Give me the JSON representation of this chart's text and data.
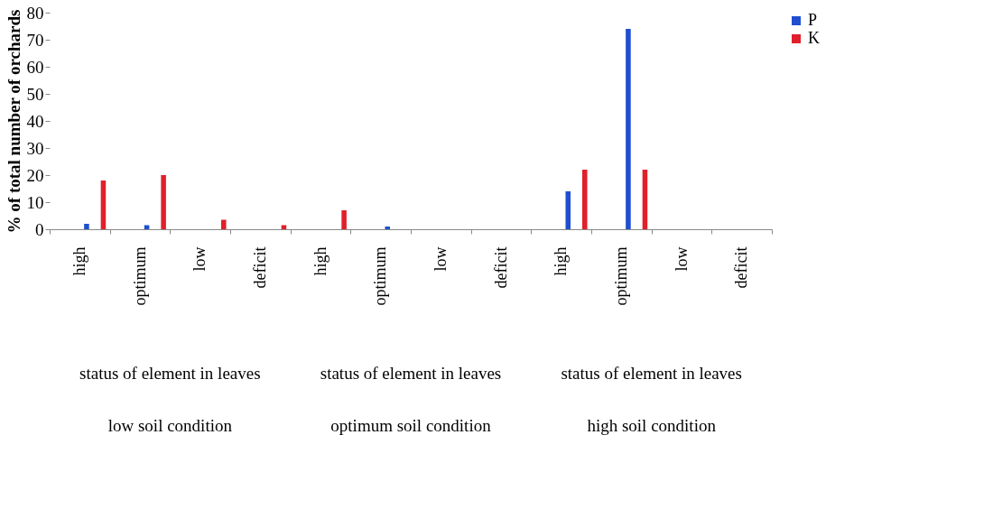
{
  "chart_data": {
    "type": "bar",
    "ylabel": "% of total number of orchards",
    "categories": [
      "high",
      "optimum",
      "low",
      "deficit",
      "high",
      "optimum",
      "low",
      "deficit",
      "high",
      "optimum",
      "low",
      "deficit"
    ],
    "series": [
      {
        "name": "P",
        "color": "#1f4fd0",
        "values": [
          2,
          1.5,
          0,
          0,
          0,
          1,
          0,
          0,
          14,
          74,
          0,
          0
        ]
      },
      {
        "name": "K",
        "color": "#e0202a",
        "values": [
          18,
          20,
          3.5,
          1.5,
          7,
          0,
          0,
          0,
          22,
          22,
          0,
          0
        ]
      }
    ],
    "ylim": [
      0,
      80
    ],
    "yticks": [
      0,
      10,
      20,
      30,
      40,
      50,
      60,
      70,
      80
    ],
    "grid": false,
    "legend": "right",
    "annotations": [
      "status of element in leaves",
      "status of element in leaves",
      "status of element in leaves",
      "low soil condition",
      "optimum soil condition",
      "high soil condition"
    ]
  }
}
